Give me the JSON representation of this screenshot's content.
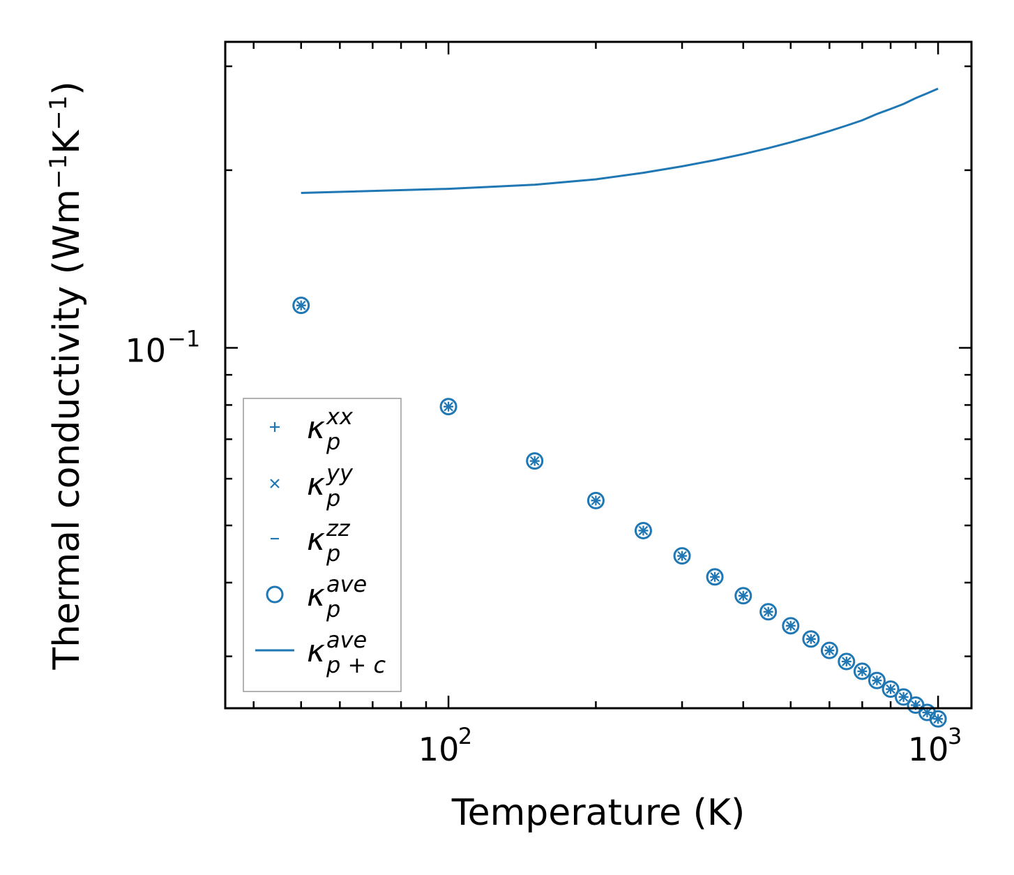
{
  "chart_data": {
    "type": "scatter",
    "title": "",
    "xlabel": "Temperature (K)",
    "ylabel_main": "Thermal conductivity (Wm",
    "ylabel_exp1": "−1",
    "ylabel_mid": "K",
    "ylabel_exp2": "−1",
    "ylabel_close": ")",
    "xscale": "log",
    "yscale": "log",
    "xlim": [
      35,
      1170
    ],
    "ylim": [
      0.0245,
      0.33
    ],
    "grid": false,
    "legend_position": "lower-left",
    "color": "#1f77b4",
    "x_ticks": [
      {
        "value": 100,
        "base": "10",
        "exp": "2"
      },
      {
        "value": 1000,
        "base": "10",
        "exp": "3"
      }
    ],
    "y_ticks": [
      {
        "value": 0.1,
        "base": "10",
        "exp": "−1"
      }
    ],
    "x": [
      50,
      100,
      150,
      200,
      250,
      300,
      350,
      400,
      450,
      500,
      550,
      600,
      650,
      700,
      750,
      800,
      850,
      900,
      950,
      1000
    ],
    "series": [
      {
        "name": "kp_xx",
        "marker": "plus",
        "label_base": "κ",
        "label_sub": "p",
        "label_sup": "xx",
        "values": [
          0.118,
          0.0795,
          0.0643,
          0.0551,
          0.049,
          0.0444,
          0.0409,
          0.038,
          0.0357,
          0.0338,
          0.0321,
          0.0307,
          0.0294,
          0.0283,
          0.0273,
          0.0264,
          0.0256,
          0.0248,
          0.0241,
          0.0235
        ]
      },
      {
        "name": "kp_yy",
        "marker": "x",
        "label_base": "κ",
        "label_sub": "p",
        "label_sup": "yy",
        "values": [
          0.118,
          0.0795,
          0.0643,
          0.0551,
          0.049,
          0.0444,
          0.0409,
          0.038,
          0.0357,
          0.0338,
          0.0321,
          0.0307,
          0.0294,
          0.0283,
          0.0273,
          0.0264,
          0.0256,
          0.0248,
          0.0241,
          0.0235
        ]
      },
      {
        "name": "kp_zz",
        "marker": "hline",
        "label_base": "κ",
        "label_sub": "p",
        "label_sup": "zz",
        "values": [
          0.118,
          0.0795,
          0.0643,
          0.0551,
          0.049,
          0.0444,
          0.0409,
          0.038,
          0.0357,
          0.0338,
          0.0321,
          0.0307,
          0.0294,
          0.0283,
          0.0273,
          0.0264,
          0.0256,
          0.0248,
          0.0241,
          0.0235
        ]
      },
      {
        "name": "kp_ave",
        "marker": "circle",
        "label_base": "κ",
        "label_sub": "p",
        "label_sup": "ave",
        "values": [
          0.118,
          0.0795,
          0.0643,
          0.0551,
          0.049,
          0.0444,
          0.0409,
          0.038,
          0.0357,
          0.0338,
          0.0321,
          0.0307,
          0.0294,
          0.0283,
          0.0273,
          0.0264,
          0.0256,
          0.0248,
          0.0241,
          0.0235
        ]
      },
      {
        "name": "kpc_ave",
        "marker": "line",
        "label_base": "κ",
        "label_sub": "p + c",
        "label_sup": "ave",
        "values": [
          0.183,
          0.186,
          0.189,
          0.193,
          0.198,
          0.203,
          0.208,
          0.213,
          0.218,
          0.223,
          0.228,
          0.233,
          0.238,
          0.243,
          0.249,
          0.254,
          0.259,
          0.265,
          0.27,
          0.275
        ]
      }
    ]
  }
}
